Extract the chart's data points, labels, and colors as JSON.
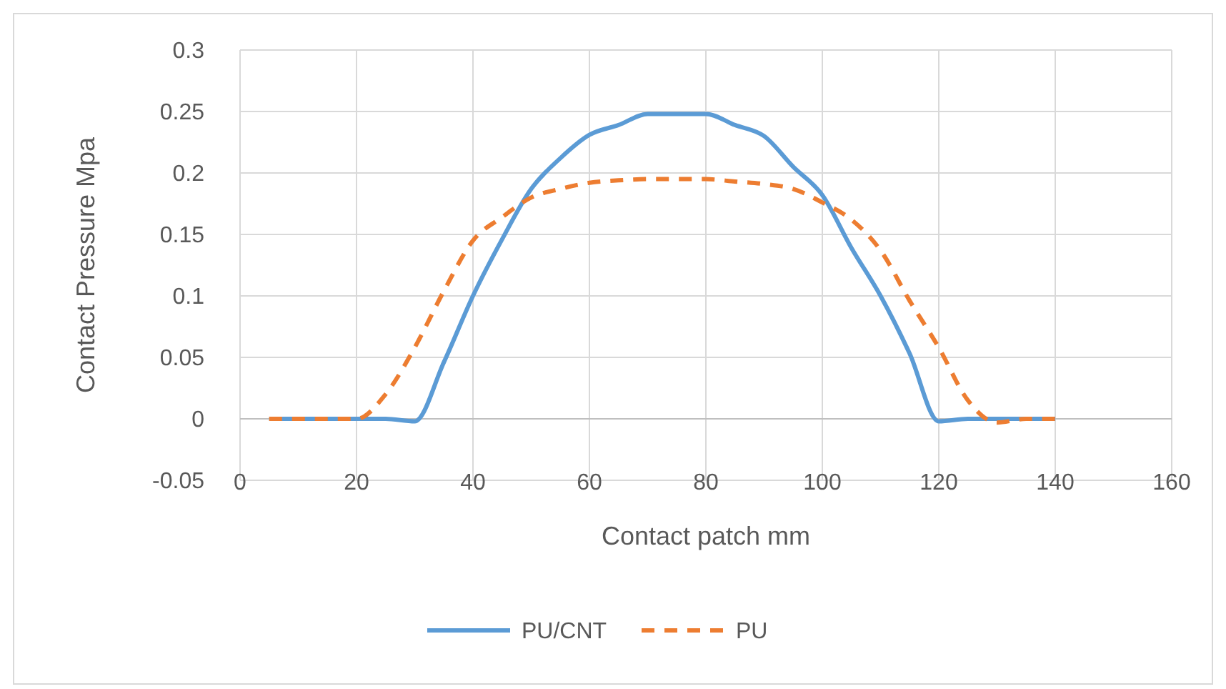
{
  "chart_data": {
    "type": "line",
    "xlabel": "Contact patch mm",
    "ylabel": "Contact Pressure Mpa",
    "x": [
      5,
      10,
      15,
      20,
      25,
      30,
      35,
      40,
      45,
      50,
      55,
      60,
      65,
      70,
      75,
      80,
      85,
      90,
      95,
      100,
      105,
      110,
      115,
      120,
      125,
      130,
      135,
      140
    ],
    "series": [
      {
        "name": "PU/CNT",
        "color": "#5b9bd5",
        "line_style": "solid",
        "values": [
          0,
          0,
          0,
          0,
          0,
          -0.002,
          0.046,
          0.1,
          0.146,
          0.187,
          0.212,
          0.231,
          0.239,
          0.248,
          0.248,
          0.248,
          0.239,
          0.23,
          0.205,
          0.182,
          0.139,
          0.1,
          0.053,
          -0.002,
          0,
          0,
          0,
          0
        ]
      },
      {
        "name": "PU",
        "color": "#ed7d31",
        "line_style": "dashed",
        "values": [
          0,
          0,
          0,
          0,
          0.02,
          0.058,
          0.104,
          0.145,
          0.164,
          0.18,
          0.187,
          0.192,
          0.194,
          0.195,
          0.195,
          0.195,
          0.193,
          0.191,
          0.187,
          0.176,
          0.162,
          0.137,
          0.096,
          0.058,
          0.015,
          -0.003,
          0,
          0
        ]
      }
    ],
    "xlim": [
      0,
      160
    ],
    "xticks": [
      0,
      20,
      40,
      60,
      80,
      100,
      120,
      140,
      160
    ],
    "ylim": [
      -0.05,
      0.3
    ],
    "yticks": [
      -0.05,
      0,
      0.05,
      0.1,
      0.15,
      0.2,
      0.25,
      0.3
    ],
    "grid": true,
    "legend": "bottom",
    "marker": "none"
  }
}
